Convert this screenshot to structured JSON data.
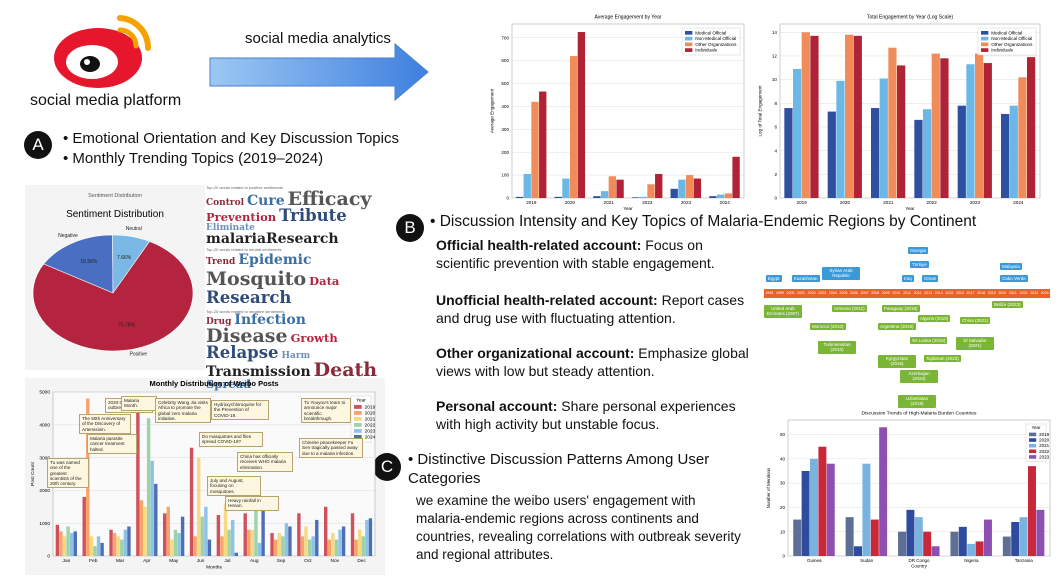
{
  "header": {
    "platform": "social media platform",
    "arrow_label": "social media analytics"
  },
  "section_a": {
    "marker": "A",
    "lines": [
      "• Emotional Orientation and Key Discussion Topics",
      "• Monthly Trending Topics (2019–2024)"
    ]
  },
  "section_b": {
    "marker": "B",
    "heading": "• Discussion Intensity and Key Topics of Malaria-Endemic Regions by Continent",
    "accounts": [
      {
        "label": "Official health-related account:",
        "text": "Focus on scientific prevention with stable engagement."
      },
      {
        "label": "Unofficial health-related account:",
        "text": "Report cases and drug use with fluctuating attention."
      },
      {
        "label": "Other organizational account:",
        "text": "Emphasize global views with low but steady attention."
      },
      {
        "label": "Personal account:",
        "text": "Share personal experiences with high activity but unstable focus."
      }
    ]
  },
  "section_c": {
    "marker": "C",
    "heading": "• Distinctive Discussion Patterns Among User Categories",
    "text": "we examine the weibo users' engagement with malaria-endemic regions across continents and countries, revealing correlations with outbreak severity and regional attributes."
  },
  "word_clouds": [
    {
      "title": "Top-20 words related to positive sentiments",
      "words": [
        "Control",
        "Cure",
        "Efficacy",
        "Prevention",
        "Tribute",
        "Eliminate",
        "malariaResearch"
      ]
    },
    {
      "title": "Top-20 words related to neutral sentiments",
      "words": [
        "Trend",
        "Epidemic",
        "Mosquito",
        "Data",
        "Research"
      ]
    },
    {
      "title": "Top-20 words related to negative sentiments",
      "words": [
        "Drug",
        "Infection",
        "Disease",
        "Growth",
        "Relapse",
        "Harm",
        "Transmission",
        "Death",
        "Spread"
      ]
    }
  ],
  "timeline": {
    "years": [
      "1998",
      "1999",
      "2000",
      "2001",
      "2002",
      "2003",
      "2004",
      "2005",
      "2006",
      "2007",
      "2008",
      "2009",
      "2010",
      "2011",
      "2012",
      "2013",
      "2014",
      "2015",
      "2016",
      "2017",
      "2018",
      "2019",
      "2020",
      "2021",
      "2022",
      "2023",
      "2024"
    ],
    "above": [
      "Egypt",
      "Kazakhstan",
      "Syrian Arab Republic",
      "Georgia",
      "Türkiye",
      "Iraq",
      "Oman",
      "Malaysia",
      "Cabo Verde"
    ],
    "below": [
      "United Arab Emirates (2007)",
      "Armenia (2011)",
      "Morocco (2010)",
      "Turkmenistan (2010)",
      "Paraguay (2018)",
      "Argentina (2019)",
      "Algeria (2019)",
      "Sri Lanka (2016)",
      "Kyrgyzstan (2016)",
      "Tajikistan (2023)",
      "Azerbaijan (2023)",
      "Uzbekistan (2018)",
      "China (2021)",
      "El Salvador (2021)",
      "Belize (2023)"
    ]
  },
  "chart_data": [
    {
      "type": "bar",
      "title": "Average Engagement by Year",
      "x_label": "Year",
      "y_label": "Average Engagement",
      "categories": [
        "2019",
        "2020",
        "2021",
        "2022",
        "2023",
        "2024"
      ],
      "ylim": [
        0,
        760
      ],
      "yticks": [
        0,
        100,
        200,
        300,
        400,
        500,
        600,
        700
      ],
      "grid": true,
      "legend": "upper right",
      "series": [
        {
          "name": "Medical Official",
          "color": "#2f4fa0",
          "values": [
            5,
            5,
            8,
            3,
            40,
            8
          ]
        },
        {
          "name": "Non-Medical Official",
          "color": "#6bb8e6",
          "values": [
            105,
            85,
            30,
            5,
            80,
            15
          ]
        },
        {
          "name": "Other Organizations",
          "color": "#f08c5a",
          "values": [
            420,
            620,
            95,
            60,
            100,
            20
          ]
        },
        {
          "name": "Individuals",
          "color": "#b02235",
          "values": [
            465,
            725,
            80,
            105,
            85,
            180
          ]
        }
      ]
    },
    {
      "type": "bar",
      "title": "Total Engagement by Year (Log Scale)",
      "x_label": "Year",
      "y_label": "Log of Total Engagement",
      "categories": [
        "2019",
        "2020",
        "2021",
        "2022",
        "2023",
        "2024"
      ],
      "ylim": [
        0,
        14.7
      ],
      "yticks": [
        0,
        2,
        4,
        6,
        8,
        10,
        12,
        14
      ],
      "grid": true,
      "legend": "upper right",
      "series": [
        {
          "name": "Medical Official",
          "color": "#2f4fa0",
          "values": [
            7.6,
            7.3,
            7.6,
            6.6,
            7.8,
            7.1
          ]
        },
        {
          "name": "Non-Medical Official",
          "color": "#6bb8e6",
          "values": [
            10.9,
            9.9,
            10.1,
            7.5,
            11.3,
            7.8
          ]
        },
        {
          "name": "Other Organizations",
          "color": "#f08c5a",
          "values": [
            14.0,
            13.8,
            12.7,
            12.2,
            12.2,
            10.2
          ]
        },
        {
          "name": "Individuals",
          "color": "#b02235",
          "values": [
            13.7,
            13.7,
            11.2,
            11.8,
            11.4,
            11.9
          ]
        }
      ]
    },
    {
      "type": "pie",
      "caption": "Sentiment Distribution",
      "title": "Sentiment Distribution",
      "categories": [
        "Negative",
        "Neutral",
        "Positive"
      ],
      "values": [
        16.56,
        7.66,
        75.78
      ],
      "value_labels": [
        "16.56%",
        "7.66%",
        "75.78%"
      ],
      "colors": [
        "#4a6fc2",
        "#7ab8e6",
        "#b5243f"
      ]
    },
    {
      "type": "bar",
      "title": "Monthly Distribution of Weibo Posts",
      "x_label": "Months",
      "y_label": "Post Count",
      "legend_title": "Year",
      "legend": "upper right",
      "categories": [
        "Jan",
        "Feb",
        "Mar",
        "Apr",
        "May",
        "Jun",
        "Jul",
        "Aug",
        "Sep",
        "Oct",
        "Nov",
        "Dec"
      ],
      "ylim": [
        0,
        5000
      ],
      "yticks": [
        0,
        1000,
        2000,
        3000,
        4000,
        5000
      ],
      "grid": true,
      "series": [
        {
          "name": "2019",
          "color": "#d0505c",
          "values": [
            950,
            1800,
            800,
            4500,
            1300,
            3300,
            1250,
            1300,
            700,
            1300,
            1500,
            1300
          ]
        },
        {
          "name": "2020",
          "color": "#f5a46a",
          "values": [
            750,
            4800,
            700,
            1700,
            1500,
            600,
            600,
            800,
            500,
            600,
            500,
            500
          ]
        },
        {
          "name": "2021",
          "color": "#f7d982",
          "values": [
            600,
            600,
            600,
            1500,
            500,
            3000,
            1600,
            800,
            700,
            900,
            700,
            800
          ]
        },
        {
          "name": "2022",
          "color": "#9ed2a8",
          "values": [
            900,
            300,
            500,
            4200,
            800,
            1200,
            800,
            1500,
            600,
            500,
            500,
            600
          ]
        },
        {
          "name": "2023",
          "color": "#8dc3e6",
          "values": [
            700,
            600,
            800,
            2900,
            700,
            1500,
            1100,
            400,
            1000,
            600,
            800,
            1100
          ]
        },
        {
          "name": "2024",
          "color": "#4f6fb5",
          "values": [
            750,
            400,
            900,
            2200,
            1200,
            500,
            100,
            1400,
            900,
            1100,
            900,
            1150
          ]
        }
      ],
      "annotations": [
        "2020:COVID-19 outbreak.",
        "The 50th Anniversary of the Discovery of Artemisinin.",
        "Malaria parasite cancer treatment halted.",
        "Tu was named one of the greatest scientists of the 20th century.",
        "Malaria Month.",
        "Celebrity Wang Jia visits Africa to promote the global zero malaria initiative.",
        "Hydroxychloroquine for the Prevention of COVID-19.",
        "Tu Youyou's team to announce major scientific breakthrough.",
        "Do masquitoes and flies spread COVID-19?",
        "China has officially receives WHO malaria elimination.",
        "July and August, focusing on mosquitoes.",
        "Heavy rainfall in Henan.",
        "Chinese peacekeeper Fu Sen tragically passed away due to a malaria infection."
      ]
    },
    {
      "type": "bar",
      "title": "Discussion Trends of High-Malaria Burden Countries",
      "x_label": "Country",
      "y_label": "Number of Mentions",
      "legend_title": "Year",
      "legend": "upper right",
      "categories": [
        "Guinea",
        "Sudan",
        "DR Congo",
        "Nigeria",
        "Tanzania"
      ],
      "ylim": [
        0,
        56
      ],
      "yticks": [
        0,
        10,
        20,
        30,
        40,
        50
      ],
      "grid": true,
      "series": [
        {
          "name": "2019",
          "color": "#5d6f95",
          "values": [
            15,
            16,
            10,
            10,
            8
          ]
        },
        {
          "name": "2020",
          "color": "#2f4b9e",
          "values": [
            35,
            4,
            19,
            12,
            14
          ]
        },
        {
          "name": "2021",
          "color": "#79b4e0",
          "values": [
            40,
            38,
            16,
            5,
            16
          ]
        },
        {
          "name": "2022",
          "color": "#c9283a",
          "values": [
            45,
            15,
            10,
            6,
            37
          ]
        },
        {
          "name": "2023",
          "color": "#8d4fb0",
          "values": [
            38,
            53,
            4,
            15,
            19
          ]
        }
      ]
    }
  ]
}
